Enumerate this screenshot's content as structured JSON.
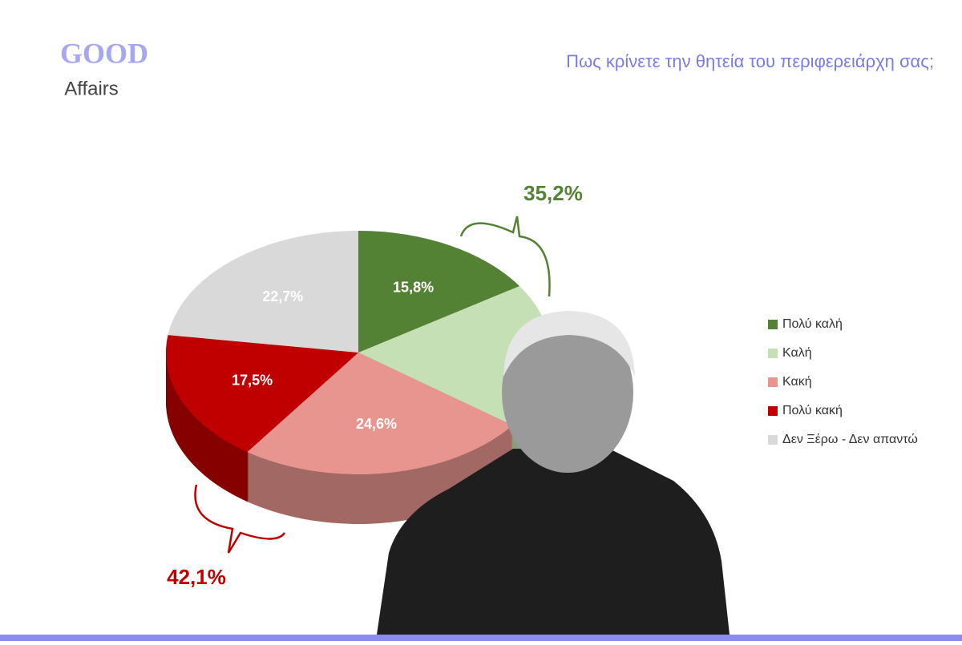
{
  "logo": {
    "top": "GOOD",
    "bottom": "Affairs"
  },
  "chart_data": {
    "type": "pie",
    "title": "Πως κρίνετε την θητεία του περιφερειάρχη σας;",
    "categories": [
      "Πολύ καλή",
      "Καλή",
      "Κακή",
      "Πολύ κακή",
      "Δεν Ξέρω - Δεν απαντώ"
    ],
    "values": [
      15.8,
      19.4,
      24.6,
      17.5,
      22.7
    ],
    "value_labels": [
      "15,8%",
      null,
      "24,6%",
      "17,5%",
      "22,7%"
    ],
    "colors": [
      "#548235",
      "#c5e0b4",
      "#e8958f",
      "#c00000",
      "#d9d9d9"
    ],
    "legend": "right",
    "group_labels": [
      {
        "value": 35.2,
        "label": "35,2%",
        "color": "#548235"
      },
      {
        "value": 42.1,
        "label": "42,1%",
        "color": "#c00000"
      }
    ]
  }
}
